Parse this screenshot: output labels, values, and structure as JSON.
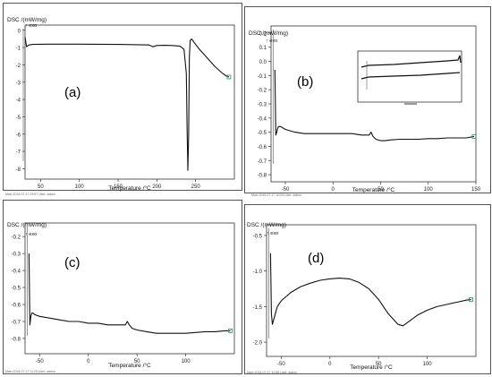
{
  "charts": [
    {
      "id": "a",
      "label": "(a)",
      "ylabel": "DSC /(mW/mg)",
      "exo": "↑ exo",
      "xlabel": "Temperature /°C",
      "footer": "Main 2015-07-17 09:57  User: admin"
    },
    {
      "id": "b",
      "label": "(b)",
      "ylabel": "DSC /(mW/mg)",
      "exo": "↑ exo",
      "xlabel": "Temperature /°C",
      "footer": "Main 2015-07-17 10:05  User: admin"
    },
    {
      "id": "c",
      "label": "(c)",
      "ylabel": "DSC /(mW/mg)",
      "exo": "↑ exo",
      "xlabel": "Temperature /°C",
      "footer": "Main 2015-07-17 11:25  User: admin"
    },
    {
      "id": "d",
      "label": "(d)",
      "ylabel": "DSC /(mW/mg)",
      "exo": "↑ exo",
      "xlabel": "Temperature /°C",
      "footer": "Main 2015-07-17 10:58  User: admin"
    }
  ],
  "chart_data": [
    {
      "type": "line",
      "panel": "(a)",
      "xlabel": "Temperature /°C",
      "ylabel": "DSC /(mW/mg)",
      "xlim": [
        30,
        300
      ],
      "ylim": [
        -8.6,
        0.3
      ],
      "xticks": [
        50,
        100,
        150,
        200,
        250
      ],
      "yticks": [
        0,
        -1,
        -2,
        -3,
        -4,
        -5,
        -6,
        -7,
        -8
      ],
      "grid": false,
      "series": [
        {
          "x": [
            30,
            32,
            35,
            40,
            60,
            100,
            150,
            190,
            195,
            200,
            210,
            220,
            230,
            235,
            238,
            239,
            240,
            241,
            242,
            243,
            245,
            248,
            255,
            265,
            275,
            285,
            290,
            293
          ],
          "y": [
            -0.4,
            -0.95,
            -0.85,
            -0.82,
            -0.8,
            -0.8,
            -0.82,
            -0.85,
            -0.95,
            -0.88,
            -0.87,
            -0.88,
            -0.92,
            -1.1,
            -2.5,
            -5.5,
            -8.1,
            -6.0,
            -1.5,
            -0.6,
            -0.5,
            -0.7,
            -1.1,
            -1.6,
            -2.1,
            -2.5,
            -2.65,
            -2.7
          ]
        }
      ],
      "end_marker": {
        "x": 293,
        "y": -2.7
      }
    },
    {
      "type": "line",
      "panel": "(b)",
      "xlabel": "Temperature /°C",
      "ylabel": "DSC /(mW/mg)",
      "xlim": [
        -65,
        150
      ],
      "ylim": [
        -0.85,
        0.25
      ],
      "xticks": [
        -50,
        0,
        50,
        100,
        150
      ],
      "yticks": [
        0.2,
        0.1,
        0.0,
        -0.1,
        -0.2,
        -0.3,
        -0.4,
        -0.5,
        -0.6,
        -0.7,
        -0.8
      ],
      "grid": false,
      "series": [
        {
          "x": [
            -61,
            -60,
            -59,
            -58,
            -57,
            -55,
            -50,
            -40,
            -30,
            -20,
            -10,
            0,
            10,
            20,
            30,
            38,
            40,
            42,
            45,
            50,
            55,
            60,
            70,
            80,
            90,
            100,
            110,
            120,
            130,
            140,
            148
          ],
          "y": [
            -0.06,
            -0.52,
            -0.5,
            -0.47,
            -0.46,
            -0.46,
            -0.48,
            -0.5,
            -0.51,
            -0.51,
            -0.51,
            -0.51,
            -0.51,
            -0.51,
            -0.52,
            -0.52,
            -0.5,
            -0.53,
            -0.55,
            -0.56,
            -0.56,
            -0.555,
            -0.55,
            -0.55,
            -0.55,
            -0.545,
            -0.545,
            -0.54,
            -0.54,
            -0.54,
            -0.53
          ]
        }
      ],
      "end_marker": {
        "x": 148,
        "y": -0.53
      }
    },
    {
      "type": "line",
      "panel": "(c)",
      "xlabel": "Temperature /°C",
      "ylabel": "DSC /(mW/mg)",
      "xlim": [
        -65,
        150
      ],
      "ylim": [
        -0.89,
        -0.12
      ],
      "xticks": [
        -50,
        0,
        50,
        100
      ],
      "yticks": [
        -0.2,
        -0.3,
        -0.4,
        -0.5,
        -0.6,
        -0.7,
        -0.8
      ],
      "grid": false,
      "series": [
        {
          "x": [
            -61,
            -60,
            -59,
            -58,
            -57,
            -55,
            -50,
            -40,
            -30,
            -20,
            -10,
            0,
            10,
            20,
            30,
            38,
            40,
            42,
            45,
            50,
            60,
            70,
            80,
            90,
            100,
            110,
            120,
            130,
            140,
            146
          ],
          "y": [
            -0.3,
            -0.72,
            -0.67,
            -0.65,
            -0.65,
            -0.66,
            -0.67,
            -0.68,
            -0.69,
            -0.7,
            -0.7,
            -0.71,
            -0.71,
            -0.72,
            -0.72,
            -0.72,
            -0.7,
            -0.72,
            -0.74,
            -0.75,
            -0.76,
            -0.77,
            -0.77,
            -0.77,
            -0.77,
            -0.765,
            -0.76,
            -0.76,
            -0.755,
            -0.755
          ]
        }
      ],
      "end_marker": {
        "x": 146,
        "y": -0.755
      }
    },
    {
      "type": "line",
      "panel": "(d)",
      "xlabel": "Temperature /°C",
      "ylabel": "DSC /(mW/mg)",
      "xlim": [
        -65,
        150
      ],
      "ylim": [
        -2.2,
        -0.35
      ],
      "xticks": [
        -50,
        0,
        50,
        100
      ],
      "yticks": [
        -0.5,
        -1.0,
        -1.5,
        -2.0
      ],
      "grid": false,
      "series": [
        {
          "x": [
            -61,
            -60,
            -59,
            -58,
            -56,
            -54,
            -50,
            -40,
            -30,
            -20,
            -10,
            0,
            10,
            20,
            30,
            40,
            50,
            60,
            70,
            75,
            80,
            90,
            100,
            110,
            120,
            130,
            140,
            145
          ],
          "y": [
            -0.75,
            -1.6,
            -1.75,
            -1.7,
            -1.6,
            -1.5,
            -1.42,
            -1.3,
            -1.22,
            -1.17,
            -1.13,
            -1.11,
            -1.1,
            -1.11,
            -1.16,
            -1.25,
            -1.4,
            -1.6,
            -1.75,
            -1.77,
            -1.72,
            -1.62,
            -1.55,
            -1.5,
            -1.47,
            -1.44,
            -1.41,
            -1.4
          ]
        }
      ],
      "end_marker": {
        "x": 145,
        "y": -1.4
      }
    }
  ]
}
